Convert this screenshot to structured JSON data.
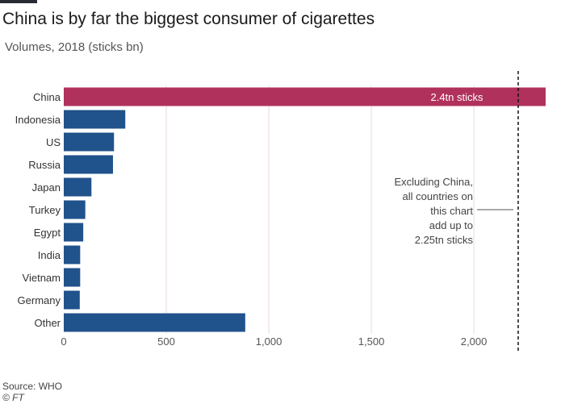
{
  "title": "China is by far the biggest consumer of cigarettes",
  "subtitle": "Volumes, 2018 (sticks bn)",
  "source": "Source: WHO",
  "copyright": "© FT",
  "colors": {
    "china": "#b1315d",
    "others": "#20528b",
    "grid": "#eadcd7",
    "reference_line": "#111111"
  },
  "chart_data": {
    "type": "bar",
    "orientation": "horizontal",
    "categories": [
      "China",
      "Indonesia",
      "US",
      "Russia",
      "Japan",
      "Turkey",
      "Egypt",
      "India",
      "Vietnam",
      "Germany",
      "Other"
    ],
    "values": [
      2350,
      300,
      245,
      240,
      135,
      105,
      95,
      80,
      80,
      78,
      885
    ],
    "xlim": [
      0,
      2350
    ],
    "xticks": [
      0,
      500,
      1000,
      1500,
      2000
    ],
    "xtick_labels": [
      "0",
      "500",
      "1,000",
      "1,500",
      "2,000"
    ],
    "grid": true,
    "bar_labels": {
      "China": "2.4tn sticks"
    },
    "reference_line": {
      "value": 2250,
      "style": "dashed"
    },
    "annotation": [
      "Excluding China,",
      "all countries on",
      "this chart",
      "add up to",
      "2.25tn sticks"
    ]
  }
}
